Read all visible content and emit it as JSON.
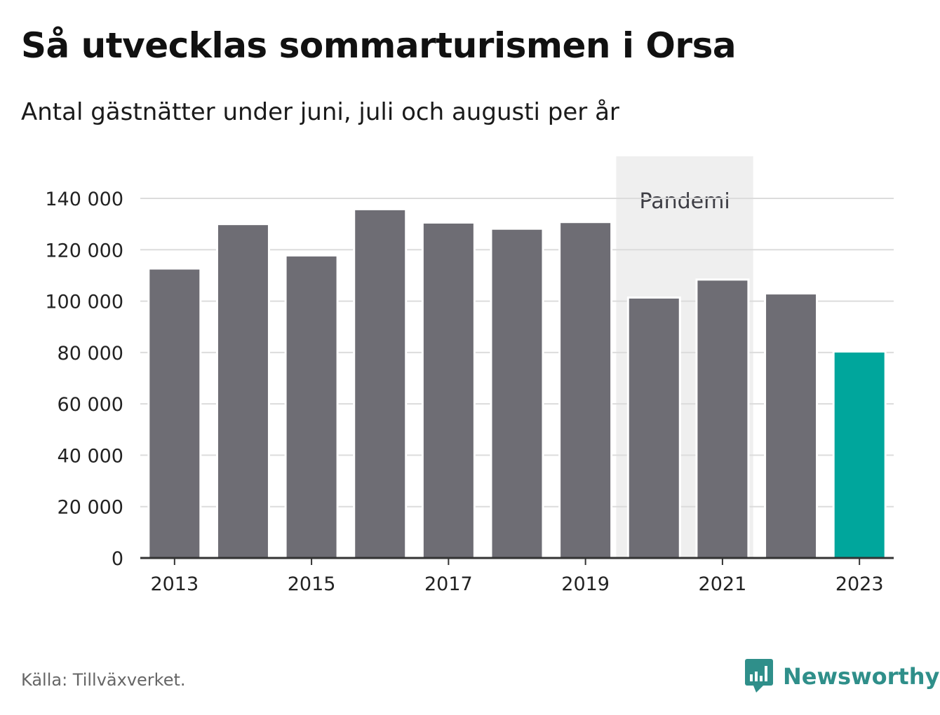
{
  "chart_data": {
    "type": "bar",
    "title": "Så utvecklas sommarturismen i Orsa",
    "subtitle": "Antal gästnätter under juni, juli och augusti per år",
    "categories": [
      "2013",
      "2014",
      "2015",
      "2016",
      "2017",
      "2018",
      "2019",
      "2020",
      "2021",
      "2022",
      "2023"
    ],
    "x_tick_labels": [
      "2013",
      "2015",
      "2017",
      "2019",
      "2021",
      "2023"
    ],
    "values": [
      112700,
      130000,
      117800,
      135800,
      130600,
      128200,
      130800,
      101400,
      108400,
      103000,
      80400
    ],
    "ylim": [
      0,
      140000
    ],
    "y_ticks": [
      0,
      20000,
      40000,
      60000,
      80000,
      100000,
      120000,
      140000
    ],
    "y_tick_labels": [
      "0",
      "20 000",
      "40 000",
      "60 000",
      "80 000",
      "100 000",
      "120 000",
      "140 000"
    ],
    "grid": true,
    "highlight_index": 10,
    "annotation": {
      "label": "Pandemi",
      "from_category": "2020",
      "to_category": "2021"
    },
    "colors": {
      "bar": "#6e6d74",
      "highlight": "#00a69c",
      "band": "#efefef",
      "grid": "#dcdcdc",
      "axis": "#333333"
    }
  },
  "footer": {
    "source": "Källa: Tillväxverket.",
    "brand": "Newsworthy"
  }
}
